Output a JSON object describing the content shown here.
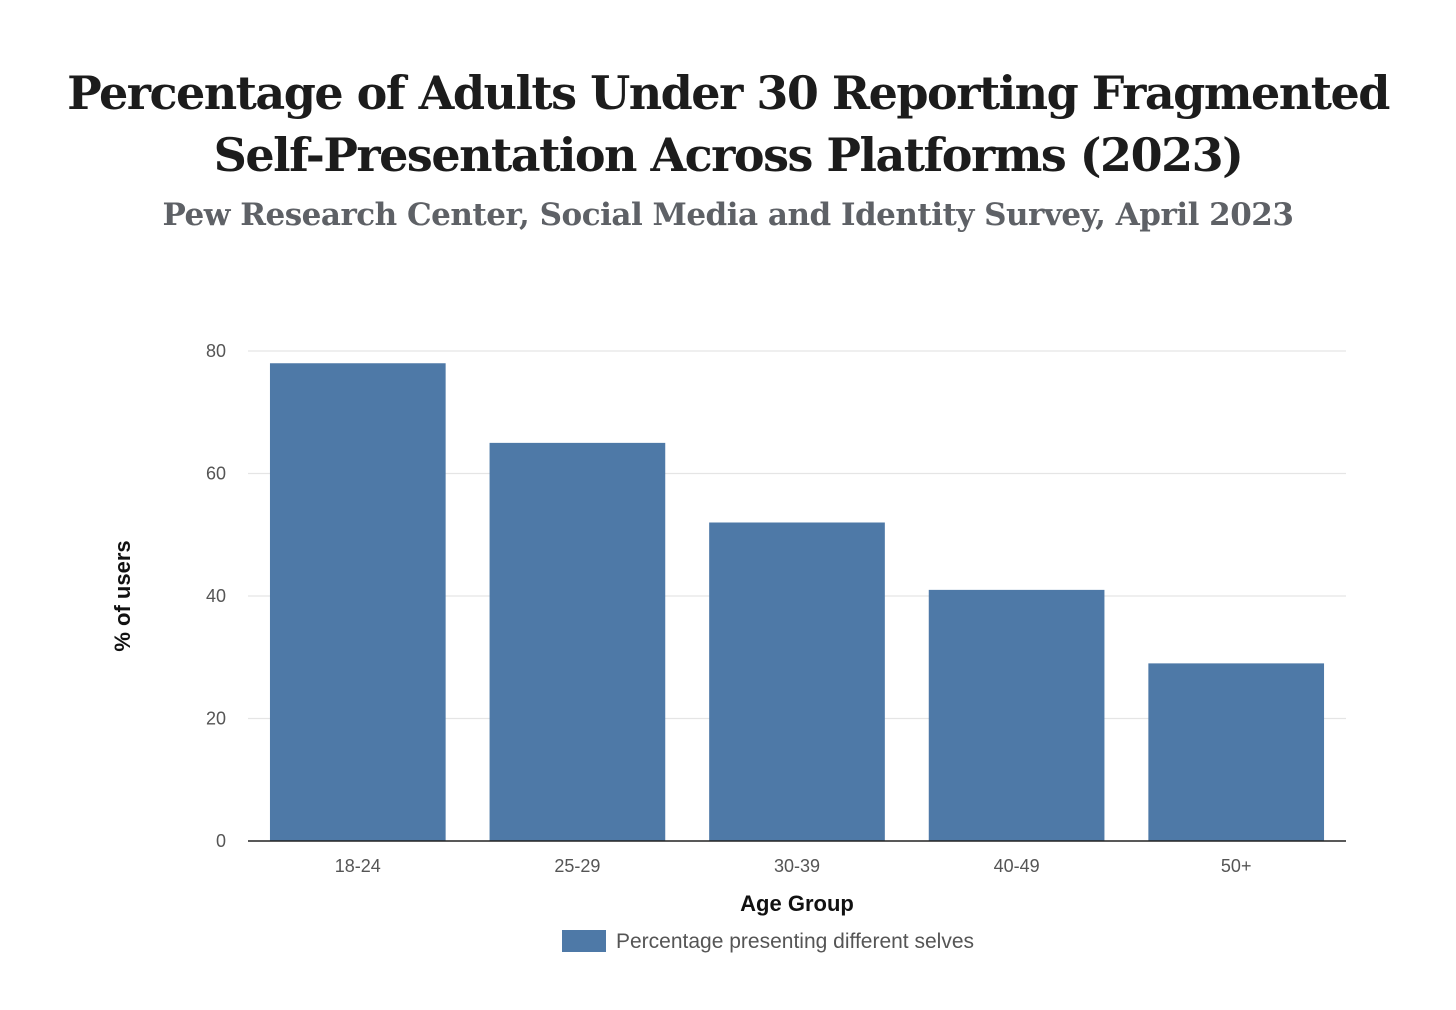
{
  "title_lines": [
    "Percentage of Adults Under 30 Reporting Fragmented",
    "Self-Presentation Across Platforms (2023)"
  ],
  "subtitle": "Pew Research Center, Social Media and Identity Survey, April 2023",
  "colors": {
    "bar": "#4e79a7",
    "grid": "#e5e5e5",
    "axis": "#222222"
  },
  "chart_data": {
    "type": "bar",
    "title": "Percentage of Adults Under 30 Reporting Fragmented Self-Presentation Across Platforms (2023)",
    "subtitle": "Pew Research Center, Social Media and Identity Survey, April 2023",
    "categories": [
      "18-24",
      "25-29",
      "30-39",
      "40-49",
      "50+"
    ],
    "series": [
      {
        "name": "Percentage presenting different selves",
        "values": [
          78,
          65,
          52,
          41,
          29
        ]
      }
    ],
    "xlabel": "Age Group",
    "ylabel": "% of users",
    "ylim": [
      0,
      80
    ],
    "yticks": [
      "0",
      "20",
      "40",
      "60",
      "80"
    ],
    "grid": true,
    "legend": "bottom-center"
  }
}
